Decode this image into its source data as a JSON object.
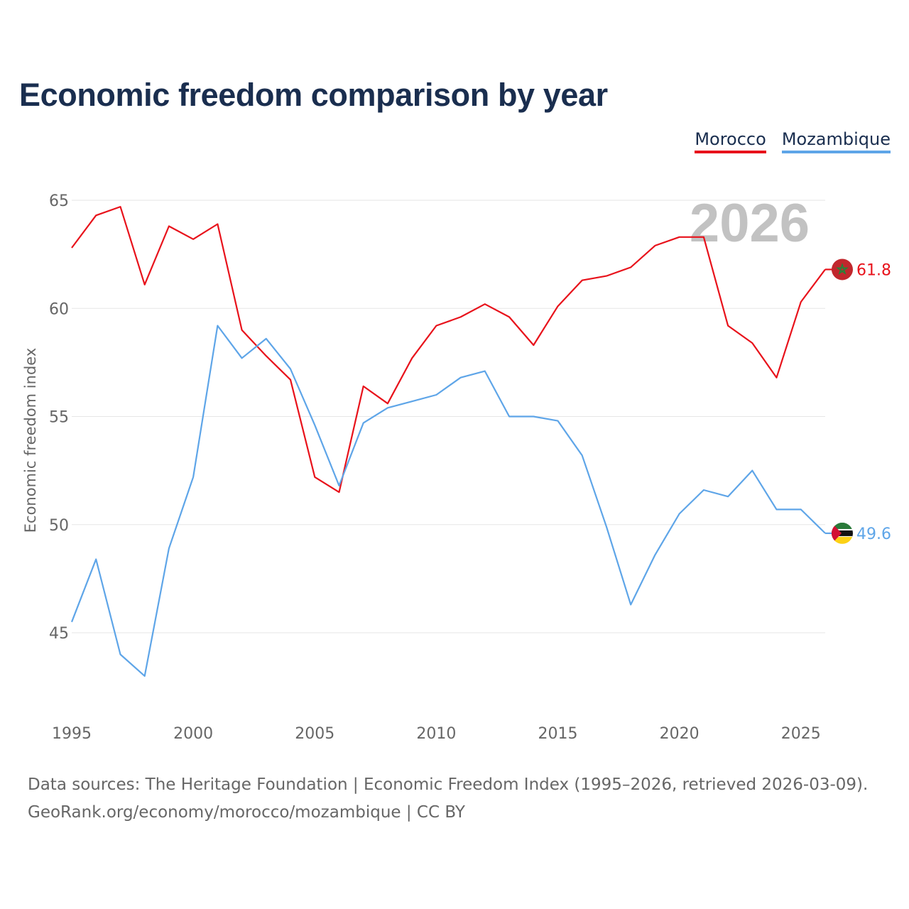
{
  "title": "Economic freedom comparison by year",
  "legend": [
    {
      "name": "Morocco",
      "color": "#e8121b"
    },
    {
      "name": "Mozambique",
      "color": "#5ea5e8"
    }
  ],
  "year_badge": "2026",
  "chart_data": {
    "type": "line",
    "title": "Economic freedom comparison by year",
    "xlabel": "",
    "ylabel": "Economic freedom index",
    "xlim": [
      1995,
      2026
    ],
    "ylim": [
      41.5,
      66
    ],
    "x_ticks": [
      1995,
      2000,
      2005,
      2010,
      2015,
      2020,
      2025
    ],
    "y_ticks": [
      45,
      50,
      55,
      60,
      65
    ],
    "grid": true,
    "x": [
      1995,
      1996,
      1997,
      1998,
      1999,
      2000,
      2001,
      2002,
      2003,
      2004,
      2005,
      2006,
      2007,
      2008,
      2009,
      2010,
      2011,
      2012,
      2013,
      2014,
      2015,
      2016,
      2017,
      2018,
      2019,
      2020,
      2021,
      2022,
      2023,
      2024,
      2025,
      2026
    ],
    "series": [
      {
        "name": "Morocco",
        "color": "#e8121b",
        "end_label": "61.8",
        "flag": "morocco",
        "values": [
          62.8,
          64.3,
          64.7,
          61.1,
          63.8,
          63.2,
          63.9,
          59.0,
          57.8,
          56.7,
          52.2,
          51.5,
          56.4,
          55.6,
          57.7,
          59.2,
          59.6,
          60.2,
          59.6,
          58.3,
          60.1,
          61.3,
          61.5,
          61.9,
          62.9,
          63.3,
          63.3,
          59.2,
          58.4,
          56.8,
          60.3,
          61.8
        ]
      },
      {
        "name": "Mozambique",
        "color": "#5ea5e8",
        "end_label": "49.6",
        "flag": "mozambique",
        "values": [
          45.5,
          48.4,
          44.0,
          43.0,
          48.9,
          52.2,
          59.2,
          57.7,
          58.6,
          57.2,
          54.6,
          51.8,
          54.7,
          55.4,
          55.7,
          56.0,
          56.8,
          57.1,
          55.0,
          55.0,
          54.8,
          53.2,
          49.9,
          46.3,
          48.6,
          50.5,
          51.6,
          51.3,
          52.5,
          50.7,
          50.7,
          49.6
        ]
      }
    ]
  },
  "footer": {
    "line1": "Data sources: The Heritage Foundation | Economic Freedom Index (1995–2026, retrieved 2026-03-09).",
    "line2": "GeoRank.org/economy/morocco/mozambique | CC BY"
  }
}
